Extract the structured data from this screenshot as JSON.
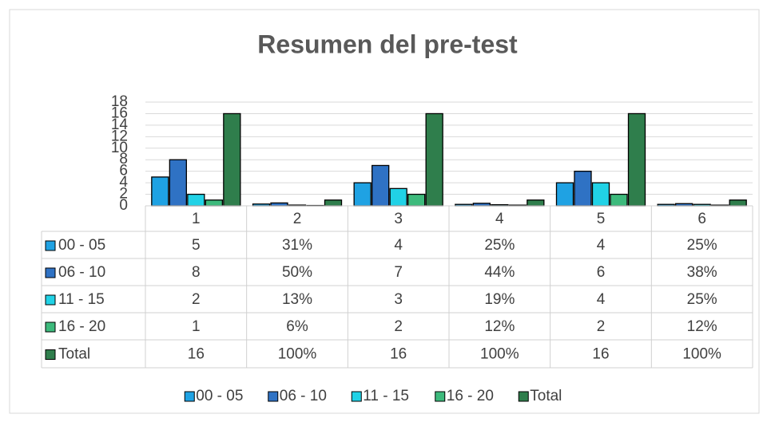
{
  "chart_data": {
    "type": "bar",
    "title": "Resumen del pre-test",
    "categories": [
      "1",
      "2",
      "3",
      "4",
      "5",
      "6"
    ],
    "series": [
      {
        "name": "00 - 05",
        "color": "#1fa2e3",
        "values": [
          5,
          0.31,
          4,
          0.25,
          4,
          0.25
        ],
        "value_labels": [
          "5",
          "31%",
          "4",
          "25%",
          "4",
          "25%"
        ]
      },
      {
        "name": "06 - 10",
        "color": "#2f72c4",
        "values": [
          8,
          0.5,
          7,
          0.44,
          6,
          0.38
        ],
        "value_labels": [
          "8",
          "50%",
          "7",
          "44%",
          "6",
          "38%"
        ]
      },
      {
        "name": "11 - 15",
        "color": "#21d2e6",
        "values": [
          2,
          0.13,
          3,
          0.19,
          4,
          0.25
        ],
        "value_labels": [
          "2",
          "13%",
          "3",
          "19%",
          "4",
          "25%"
        ]
      },
      {
        "name": "16 - 20",
        "color": "#3dba7c",
        "values": [
          1,
          0.06,
          2,
          0.12,
          2,
          0.12
        ],
        "value_labels": [
          "1",
          "6%",
          "2",
          "12%",
          "2",
          "12%"
        ]
      },
      {
        "name": "Total",
        "color": "#2f7e4c",
        "values": [
          16,
          1,
          16,
          1,
          16,
          1
        ],
        "value_labels": [
          "16",
          "100%",
          "16",
          "100%",
          "16",
          "100%"
        ]
      }
    ],
    "ylim": [
      0,
      18
    ],
    "yticks": [
      0,
      2,
      4,
      6,
      8,
      10,
      12,
      14,
      16,
      18
    ],
    "grid": true,
    "legend": "bottom"
  }
}
